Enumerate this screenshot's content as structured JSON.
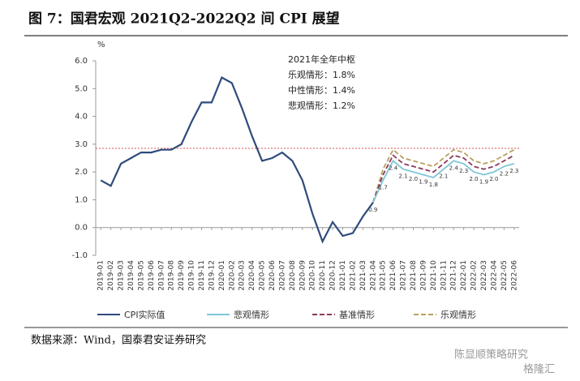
{
  "chart_data": {
    "type": "line",
    "title": "图 7：国君宏观 2021Q2-2022Q2 间 CPI 展望",
    "y_unit": "%",
    "annotation": [
      "2021年全年中枢",
      "乐观情形：1.8%",
      "中性情形：1.4%",
      "悲观情形：1.2%"
    ],
    "source": "数据来源：Wind，国泰君安证券研究",
    "watermark": [
      "陈显顺策略研究",
      "格隆汇"
    ],
    "categories": [
      "2019-01",
      "2019-02",
      "2019-03",
      "2019-04",
      "2019-05",
      "2019-06",
      "2019-07",
      "2019-08",
      "2019-09",
      "2019-10",
      "2019-11",
      "2019-12",
      "2020-01",
      "2020-02",
      "2020-03",
      "2020-04",
      "2020-05",
      "2020-06",
      "2020-07",
      "2020-08",
      "2020-09",
      "2020-10",
      "2020-11",
      "2020-12",
      "2021-01",
      "2021-02",
      "2021-03",
      "2021-04",
      "2021-05",
      "2021-06",
      "2021-07",
      "2021-08",
      "2021-09",
      "2021-10",
      "2021-11",
      "2021-12",
      "2022-01",
      "2022-02",
      "2022-03",
      "2022-04",
      "2022-05",
      "2022-06"
    ],
    "series": [
      {
        "name": "CPI实际值",
        "color": "#2f4b7c",
        "dash": false,
        "values": [
          1.7,
          1.5,
          2.3,
          2.5,
          2.7,
          2.7,
          2.8,
          2.8,
          3.0,
          3.8,
          4.5,
          4.5,
          5.4,
          5.2,
          4.3,
          3.3,
          2.4,
          2.5,
          2.7,
          2.4,
          1.7,
          0.5,
          -0.5,
          0.2,
          -0.3,
          -0.2,
          0.4,
          0.9,
          null,
          null,
          null,
          null,
          null,
          null,
          null,
          null,
          null,
          null,
          null,
          null,
          null,
          null
        ]
      },
      {
        "name": "悲观情形",
        "color": "#7fc6d6",
        "dash": false,
        "values": [
          null,
          null,
          null,
          null,
          null,
          null,
          null,
          null,
          null,
          null,
          null,
          null,
          null,
          null,
          null,
          null,
          null,
          null,
          null,
          null,
          null,
          null,
          null,
          null,
          null,
          null,
          null,
          0.9,
          1.7,
          2.4,
          2.1,
          2.0,
          1.9,
          1.8,
          2.1,
          2.4,
          2.3,
          2.0,
          1.9,
          2.0,
          2.2,
          2.3
        ],
        "value_labels": [
          null,
          null,
          null,
          null,
          null,
          null,
          null,
          null,
          null,
          null,
          null,
          null,
          null,
          null,
          null,
          null,
          null,
          null,
          null,
          null,
          null,
          null,
          null,
          null,
          null,
          null,
          null,
          "0.9",
          "1.7",
          "2.4",
          "2.1",
          "2.0",
          "1.9",
          "1.8",
          "2.1",
          "2.4",
          "2.3",
          "2.0",
          "1.9",
          "2.0",
          "2.2",
          "2.3"
        ]
      },
      {
        "name": "基准情形",
        "color": "#8b3a5a",
        "dash": true,
        "values": [
          null,
          null,
          null,
          null,
          null,
          null,
          null,
          null,
          null,
          null,
          null,
          null,
          null,
          null,
          null,
          null,
          null,
          null,
          null,
          null,
          null,
          null,
          null,
          null,
          null,
          null,
          null,
          0.9,
          1.9,
          2.6,
          2.3,
          2.2,
          2.1,
          2.0,
          2.3,
          2.6,
          2.5,
          2.2,
          2.1,
          2.2,
          2.4,
          2.6
        ]
      },
      {
        "name": "乐观情形",
        "color": "#b8a060",
        "dash": true,
        "values": [
          null,
          null,
          null,
          null,
          null,
          null,
          null,
          null,
          null,
          null,
          null,
          null,
          null,
          null,
          null,
          null,
          null,
          null,
          null,
          null,
          null,
          null,
          null,
          null,
          null,
          null,
          null,
          0.9,
          2.1,
          2.8,
          2.5,
          2.4,
          2.3,
          2.2,
          2.5,
          2.8,
          2.7,
          2.4,
          2.3,
          2.4,
          2.6,
          2.8
        ]
      }
    ],
    "ref_line": {
      "value": 2.85,
      "color": "#d9534f"
    },
    "ylim": [
      -1.0,
      6.0
    ],
    "yticks": [
      {
        "value": -1.0,
        "label": "-1.0"
      },
      {
        "value": 0.0,
        "label": "0.0"
      },
      {
        "value": 1.0,
        "label": "1.0"
      },
      {
        "value": 2.0,
        "label": "2.0"
      },
      {
        "value": 3.0,
        "label": "3.0"
      },
      {
        "value": 4.0,
        "label": "4.0"
      },
      {
        "value": 5.0,
        "label": "5.0"
      },
      {
        "value": 6.0,
        "label": "6.0"
      }
    ]
  }
}
